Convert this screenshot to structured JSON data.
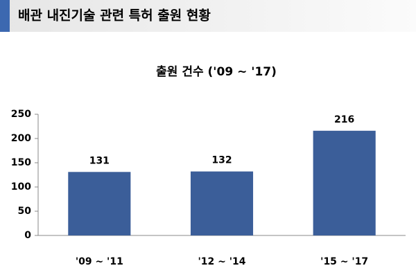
{
  "header": {
    "title": "배관 내진기술 관련 특허 출원 현황"
  },
  "chart_data": {
    "type": "bar",
    "title": "출원 건수 ('09 ~ '17)",
    "categories": [
      "'09 ~ '11",
      "'12 ~ '14",
      "'15 ~ '17"
    ],
    "values": [
      131,
      132,
      216
    ],
    "color": "#3b5e99",
    "ylim": [
      0,
      250
    ],
    "yticks": [
      0,
      50,
      100,
      150,
      200,
      250
    ],
    "grid": false
  }
}
